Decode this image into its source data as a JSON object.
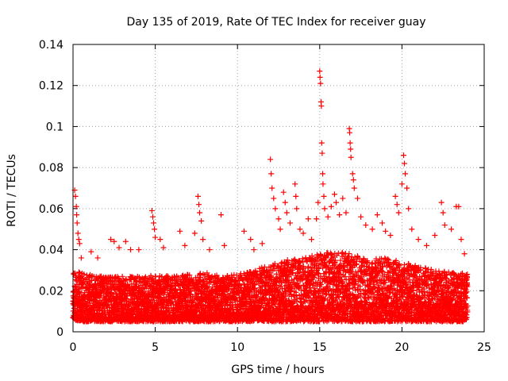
{
  "chart_data": {
    "type": "scatter",
    "title": "Day 135 of 2019, Rate Of TEC Index for receiver guay",
    "xlabel": "GPS time / hours",
    "ylabel": "ROTI / TECUs",
    "xlim": [
      0,
      25
    ],
    "ylim": [
      0,
      0.14
    ],
    "xticks": [
      "0",
      "5",
      "10",
      "15",
      "20",
      "25"
    ],
    "yticks": [
      "0",
      "0.02",
      "0.04",
      "0.06",
      "0.08",
      "0.1",
      "0.12",
      "0.14"
    ],
    "grid": true,
    "marker": "plus",
    "color": "#ff0000",
    "series": [
      {
        "name": "ROTI",
        "points": [
          [
            0.1,
            0.069
          ],
          [
            0.15,
            0.066
          ],
          [
            0.2,
            0.061
          ],
          [
            0.22,
            0.057
          ],
          [
            0.25,
            0.053
          ],
          [
            0.3,
            0.048
          ],
          [
            0.35,
            0.045
          ],
          [
            0.4,
            0.043
          ],
          [
            0.5,
            0.036
          ],
          [
            1.1,
            0.039
          ],
          [
            1.5,
            0.036
          ],
          [
            2.3,
            0.045
          ],
          [
            2.5,
            0.044
          ],
          [
            2.8,
            0.041
          ],
          [
            3.2,
            0.044
          ],
          [
            3.5,
            0.04
          ],
          [
            4.0,
            0.04
          ],
          [
            4.8,
            0.059
          ],
          [
            4.85,
            0.056
          ],
          [
            4.9,
            0.053
          ],
          [
            4.95,
            0.05
          ],
          [
            5.0,
            0.046
          ],
          [
            5.3,
            0.045
          ],
          [
            5.5,
            0.041
          ],
          [
            6.5,
            0.049
          ],
          [
            6.8,
            0.042
          ],
          [
            7.4,
            0.048
          ],
          [
            7.6,
            0.066
          ],
          [
            7.65,
            0.062
          ],
          [
            7.7,
            0.058
          ],
          [
            7.8,
            0.054
          ],
          [
            7.9,
            0.045
          ],
          [
            8.3,
            0.04
          ],
          [
            9.0,
            0.057
          ],
          [
            9.2,
            0.042
          ],
          [
            10.4,
            0.049
          ],
          [
            10.8,
            0.045
          ],
          [
            11.0,
            0.04
          ],
          [
            11.5,
            0.043
          ],
          [
            12.0,
            0.084
          ],
          [
            12.05,
            0.077
          ],
          [
            12.1,
            0.07
          ],
          [
            12.2,
            0.065
          ],
          [
            12.3,
            0.06
          ],
          [
            12.5,
            0.055
          ],
          [
            12.6,
            0.05
          ],
          [
            12.8,
            0.068
          ],
          [
            12.9,
            0.063
          ],
          [
            13.0,
            0.058
          ],
          [
            13.2,
            0.053
          ],
          [
            13.5,
            0.072
          ],
          [
            13.55,
            0.066
          ],
          [
            13.6,
            0.06
          ],
          [
            13.8,
            0.05
          ],
          [
            14.0,
            0.048
          ],
          [
            14.3,
            0.055
          ],
          [
            14.5,
            0.045
          ],
          [
            14.8,
            0.055
          ],
          [
            14.9,
            0.063
          ],
          [
            15.0,
            0.127
          ],
          [
            15.02,
            0.124
          ],
          [
            15.05,
            0.121
          ],
          [
            15.08,
            0.112
          ],
          [
            15.1,
            0.11
          ],
          [
            15.12,
            0.092
          ],
          [
            15.15,
            0.087
          ],
          [
            15.18,
            0.077
          ],
          [
            15.2,
            0.072
          ],
          [
            15.25,
            0.066
          ],
          [
            15.3,
            0.06
          ],
          [
            15.5,
            0.056
          ],
          [
            15.7,
            0.061
          ],
          [
            15.9,
            0.067
          ],
          [
            16.0,
            0.063
          ],
          [
            16.2,
            0.057
          ],
          [
            16.4,
            0.065
          ],
          [
            16.6,
            0.058
          ],
          [
            16.8,
            0.099
          ],
          [
            16.82,
            0.097
          ],
          [
            16.85,
            0.092
          ],
          [
            16.88,
            0.089
          ],
          [
            16.9,
            0.085
          ],
          [
            17.0,
            0.077
          ],
          [
            17.05,
            0.074
          ],
          [
            17.1,
            0.07
          ],
          [
            17.3,
            0.065
          ],
          [
            17.5,
            0.056
          ],
          [
            17.8,
            0.052
          ],
          [
            18.2,
            0.05
          ],
          [
            18.5,
            0.057
          ],
          [
            18.8,
            0.053
          ],
          [
            19.0,
            0.049
          ],
          [
            19.3,
            0.047
          ],
          [
            19.6,
            0.066
          ],
          [
            19.7,
            0.062
          ],
          [
            19.8,
            0.058
          ],
          [
            20.0,
            0.072
          ],
          [
            20.1,
            0.086
          ],
          [
            20.15,
            0.082
          ],
          [
            20.2,
            0.077
          ],
          [
            20.3,
            0.07
          ],
          [
            20.4,
            0.06
          ],
          [
            20.6,
            0.05
          ],
          [
            21.0,
            0.045
          ],
          [
            21.5,
            0.042
          ],
          [
            22.0,
            0.047
          ],
          [
            22.4,
            0.063
          ],
          [
            22.5,
            0.058
          ],
          [
            22.6,
            0.052
          ],
          [
            23.0,
            0.05
          ],
          [
            23.3,
            0.061
          ],
          [
            23.45,
            0.061
          ],
          [
            23.6,
            0.045
          ],
          [
            23.8,
            0.038
          ]
        ],
        "band": {
          "hours": [
            0,
            0.5,
            1,
            2,
            3,
            4,
            5,
            6,
            7,
            8,
            9,
            10,
            11,
            12,
            13,
            14,
            15,
            16,
            17,
            18,
            19,
            20,
            21,
            22,
            23,
            24
          ],
          "low": [
            0.006,
            0.005,
            0.005,
            0.005,
            0.005,
            0.005,
            0.005,
            0.005,
            0.005,
            0.005,
            0.005,
            0.005,
            0.005,
            0.005,
            0.005,
            0.005,
            0.005,
            0.005,
            0.005,
            0.005,
            0.005,
            0.005,
            0.005,
            0.005,
            0.005,
            0.005
          ],
          "high": [
            0.03,
            0.03,
            0.028,
            0.027,
            0.027,
            0.027,
            0.028,
            0.027,
            0.028,
            0.029,
            0.027,
            0.028,
            0.03,
            0.033,
            0.035,
            0.036,
            0.038,
            0.039,
            0.038,
            0.036,
            0.036,
            0.034,
            0.032,
            0.03,
            0.029,
            0.029
          ]
        }
      }
    ]
  }
}
